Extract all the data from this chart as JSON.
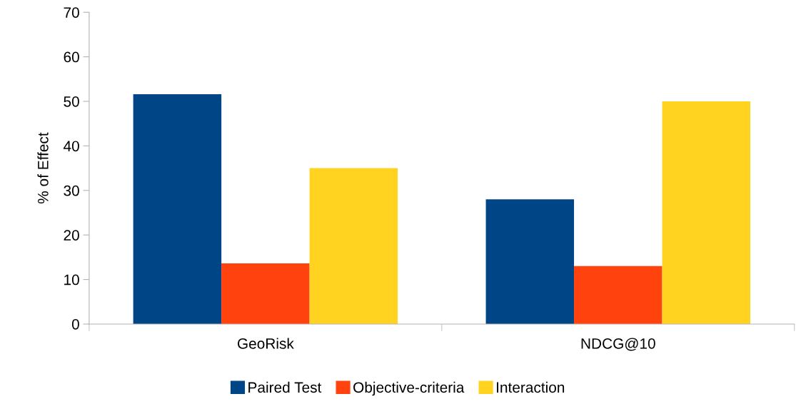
{
  "chart_data": {
    "type": "bar",
    "ylabel": "% of Effect",
    "categories": [
      "GeoRisk",
      "NDCG@10"
    ],
    "series": [
      {
        "name": "Paired Test",
        "color": "#004586",
        "values": [
          51.6,
          28.0
        ]
      },
      {
        "name": "Objective-criteria",
        "color": "#ff420e",
        "values": [
          13.6,
          13.0
        ]
      },
      {
        "name": "Interaction",
        "color": "#ffd320",
        "values": [
          35.0,
          50.0
        ]
      }
    ],
    "ylim": [
      0,
      70
    ],
    "yticks": [
      0,
      10,
      20,
      30,
      40,
      50,
      60,
      70
    ],
    "grid": false,
    "legend": "bottom"
  }
}
